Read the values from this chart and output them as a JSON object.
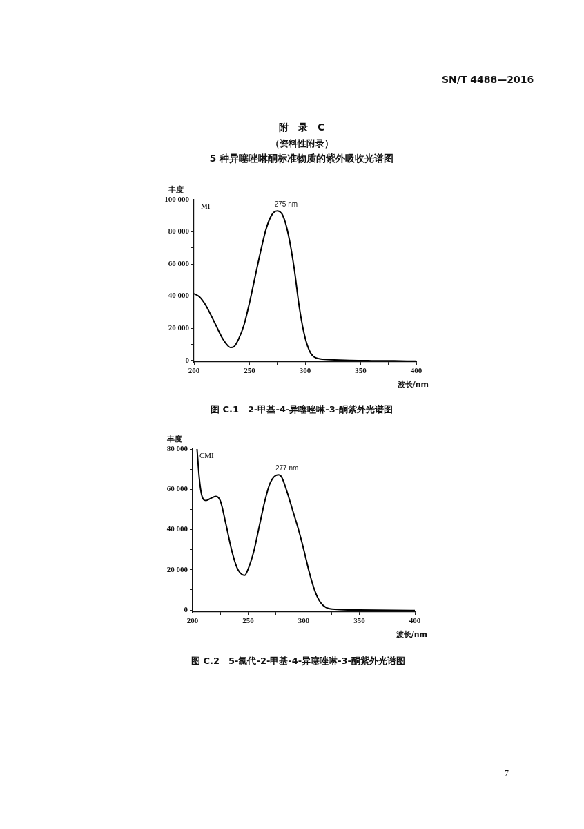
{
  "chart_data": [
    {
      "type": "line",
      "title": "附　录　C",
      "subtitle": "（资料性附录）",
      "ylabel": "丰度",
      "xlabel": "波长/nm",
      "legend": false,
      "grid": false,
      "marker": "none",
      "annotations": [
        "SN/T 4488—2016",
        "5 种异噻唑啉酮标准物质的紫外吸收光谱图",
        {
          "text": "275 nm",
          "x": 275,
          "y": 93000
        },
        "图 C.1　2-甲基-4-异噻唑啉-3-酮紫外光谱图",
        "7"
      ],
      "xlim": [
        200,
        400
      ],
      "xticks": [
        200,
        {
          "value": 225,
          "label": null
        },
        250,
        {
          "value": 275,
          "label": null
        },
        300,
        {
          "value": 325,
          "label": null
        },
        350,
        {
          "value": 375,
          "label": null
        },
        400
      ],
      "ylim": [
        -1000,
        100000
      ],
      "yticks": [
        {
          "value": 0,
          "label": "0"
        },
        {
          "value": 10000,
          "label": null
        },
        {
          "value": 20000,
          "label": "20 000"
        },
        {
          "value": 30000,
          "label": null
        },
        {
          "value": 40000,
          "label": "40 000"
        },
        {
          "value": 50000,
          "label": null
        },
        {
          "value": 60000,
          "label": "60 000"
        },
        {
          "value": 70000,
          "label": null
        },
        {
          "value": 80000,
          "label": "80 000"
        },
        {
          "value": 90000,
          "label": null
        },
        {
          "value": 100000,
          "label": "100 000"
        }
      ],
      "series": [
        {
          "name": "MI",
          "color": "#000000",
          "x": [
            200,
            205,
            210,
            215,
            220,
            225,
            230,
            233,
            236,
            240,
            245,
            250,
            255,
            260,
            265,
            270,
            275,
            280,
            285,
            290,
            295,
            300,
            305,
            310,
            320,
            340,
            360,
            380,
            400
          ],
          "values": [
            41500,
            39500,
            35000,
            28500,
            21500,
            14500,
            9500,
            8000,
            8500,
            13000,
            22000,
            36000,
            52000,
            68000,
            82000,
            90500,
            93000,
            90000,
            78000,
            58000,
            32000,
            14000,
            4500,
            1500,
            500,
            0,
            -200,
            -300,
            -500
          ]
        }
      ]
    },
    {
      "type": "line",
      "ylabel": "丰度",
      "xlabel": "波长/nm",
      "legend": false,
      "grid": false,
      "marker": "none",
      "annotations": [
        {
          "text": "277 nm",
          "x": 277,
          "y": 67200
        },
        "图 C.2　5-氯代-2-甲基-4-异噻唑啉-3-酮紫外光谱图"
      ],
      "xlim": [
        200,
        400
      ],
      "xticks": [
        200,
        {
          "value": 225,
          "label": null
        },
        250,
        {
          "value": 275,
          "label": null
        },
        300,
        {
          "value": 325,
          "label": null
        },
        350,
        {
          "value": 375,
          "label": null
        },
        400
      ],
      "ylim": [
        -1000,
        80000
      ],
      "yticks": [
        {
          "value": 0,
          "label": "0"
        },
        {
          "value": 10000,
          "label": null
        },
        {
          "value": 20000,
          "label": "20 000"
        },
        {
          "value": 30000,
          "label": null
        },
        {
          "value": 40000,
          "label": "40 000"
        },
        {
          "value": 50000,
          "label": null
        },
        {
          "value": 60000,
          "label": "60 000"
        },
        {
          "value": 70000,
          "label": null
        },
        {
          "value": 80000,
          "label": "80 000"
        }
      ],
      "series": [
        {
          "name": "CMI",
          "color": "#000000",
          "x": [
            204,
            206,
            208,
            212,
            216,
            221,
            225,
            230,
            235,
            240,
            245,
            247,
            250,
            255,
            260,
            265,
            270,
            277,
            280,
            285,
            290,
            295,
            300,
            305,
            310,
            315,
            320,
            330,
            350,
            400
          ],
          "values": [
            80000,
            65700,
            57600,
            54400,
            55400,
            56500,
            54200,
            42700,
            30100,
            21000,
            17500,
            17300,
            20400,
            29000,
            41600,
            54200,
            63400,
            67200,
            66200,
            58700,
            49600,
            40500,
            30100,
            18700,
            9500,
            3800,
            1300,
            300,
            0,
            -200
          ]
        }
      ]
    }
  ]
}
